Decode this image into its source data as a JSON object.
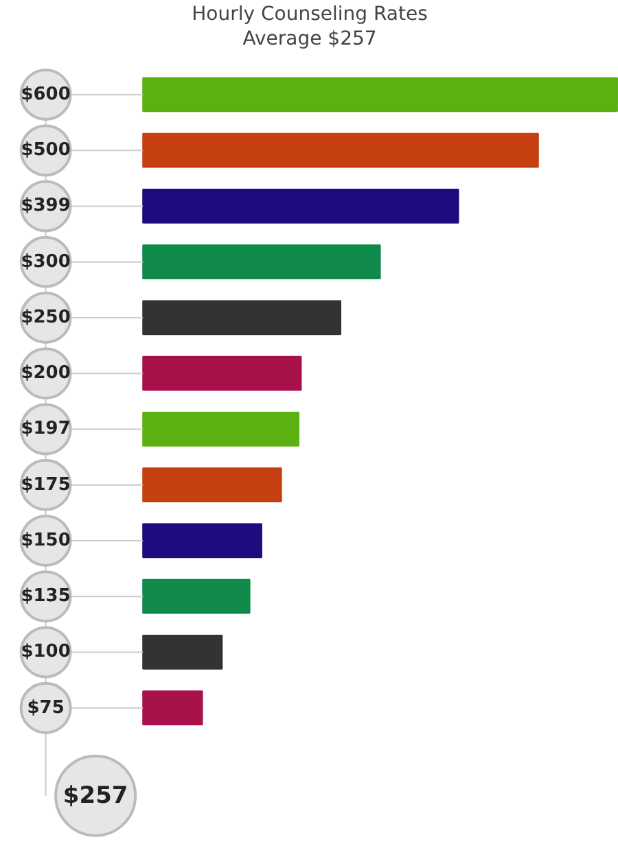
{
  "chart_data": {
    "type": "bar",
    "orientation": "horizontal",
    "title": "Hourly Counseling Rates",
    "subtitle": "Average $257",
    "categories": [
      null,
      null,
      null,
      null,
      null,
      null,
      null,
      null,
      null,
      null,
      null,
      null
    ],
    "values": [
      600,
      500,
      399,
      300,
      250,
      200,
      197,
      175,
      150,
      135,
      100,
      75
    ],
    "value_labels": [
      "$600",
      "$500",
      "$399",
      "$300",
      "$250",
      "$200",
      "$197",
      "$175",
      "$150",
      "$135",
      "$100",
      "$75"
    ],
    "colors": [
      "#5bb012",
      "#c63f11",
      "#1f0a80",
      "#0f8a4b",
      "#333333",
      "#a8114a",
      "#5bb012",
      "#c63f11",
      "#1f0a80",
      "#0f8a4b",
      "#333333",
      "#a8114a"
    ],
    "annotations": [
      "$257"
    ]
  }
}
